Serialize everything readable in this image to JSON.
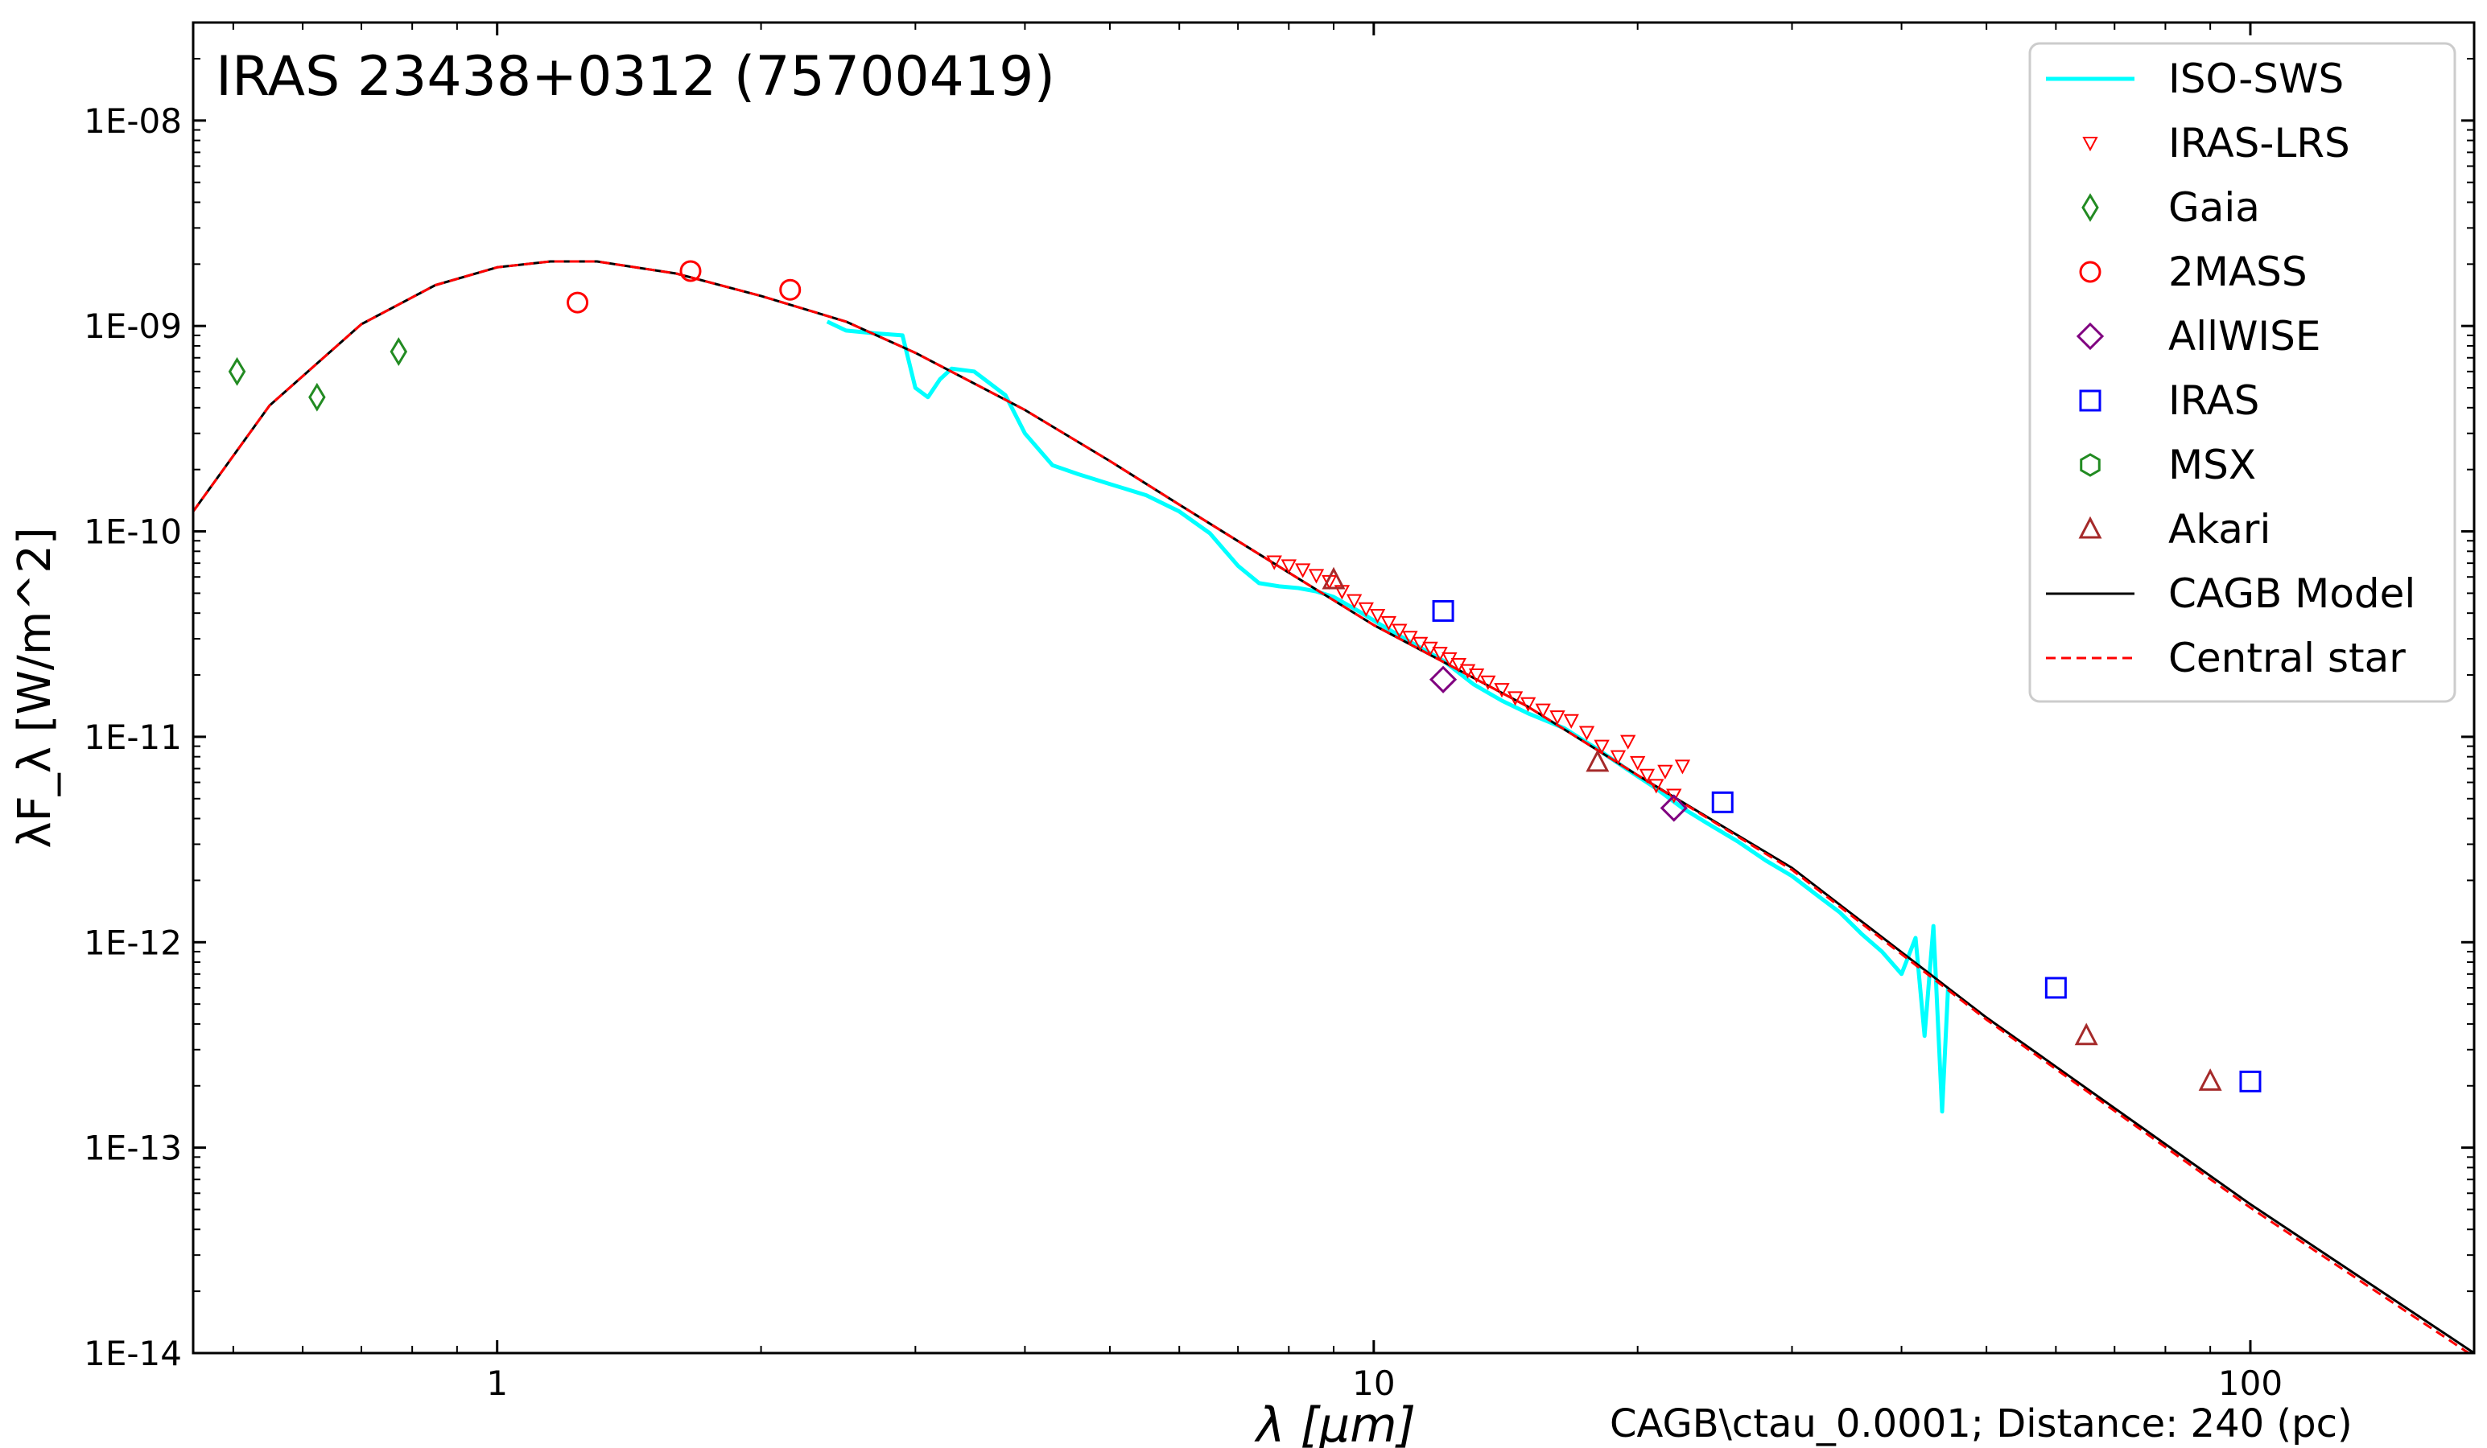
{
  "chart_data": {
    "type": "line",
    "title": "IRAS 23438+0312 (75700419)",
    "xlabel": "λ [μm]",
    "ylabel": "λF_λ [W/m^2]",
    "footnote": "CAGB\\ctau_0.0001; Distance: 240 (pc)",
    "xscale": "log",
    "yscale": "log",
    "xlim": [
      0.45,
      180
    ],
    "ylim": [
      1e-14,
      3e-08
    ],
    "x_ticks": [
      {
        "value": 1,
        "label": "1"
      },
      {
        "value": 10,
        "label": "10"
      },
      {
        "value": 100,
        "label": "100"
      }
    ],
    "y_ticks": [
      {
        "value": 1e-08,
        "label": "1E-08"
      },
      {
        "value": 1e-09,
        "label": "1E-09"
      },
      {
        "value": 1e-10,
        "label": "1E-10"
      },
      {
        "value": 1e-11,
        "label": "1E-11"
      },
      {
        "value": 1e-12,
        "label": "1E-12"
      },
      {
        "value": 1e-13,
        "label": "1E-13"
      },
      {
        "value": 1e-14,
        "label": "1E-14"
      }
    ],
    "legend_position": "top-right",
    "grid": false,
    "series": [
      {
        "name": "ISO-SWS",
        "kind": "line",
        "color": "#00ffff",
        "x": [
          2.38,
          2.5,
          2.7,
          2.9,
          3.0,
          3.1,
          3.2,
          3.3,
          3.5,
          3.8,
          4.0,
          4.3,
          4.6,
          5.0,
          5.5,
          6.0,
          6.5,
          7.0,
          7.4,
          7.8,
          8.2,
          8.6,
          9.0,
          9.6,
          10.2,
          11.0,
          12.0,
          13.0,
          14.0,
          15.0,
          16.5,
          18.0,
          19.5,
          21.0,
          22.5,
          24.0,
          26.0,
          28.0,
          30.0,
          32.0,
          34.0,
          36.0,
          38.0,
          40.0,
          41.5,
          42.5,
          43.5,
          44.5,
          45.2
        ],
        "y": [
          1.05e-09,
          9.5e-10,
          9.2e-10,
          9e-10,
          5e-10,
          4.5e-10,
          5.5e-10,
          6.2e-10,
          6e-10,
          4.6e-10,
          3e-10,
          2.1e-10,
          1.9e-10,
          1.7e-10,
          1.5e-10,
          1.25e-10,
          9.8e-11,
          6.8e-11,
          5.6e-11,
          5.4e-11,
          5.3e-11,
          5.1e-11,
          4.8e-11,
          4.1e-11,
          3.5e-11,
          2.9e-11,
          2.35e-11,
          1.8e-11,
          1.5e-11,
          1.3e-11,
          1.1e-11,
          8.7e-12,
          6.9e-12,
          5.6e-12,
          4.5e-12,
          3.8e-12,
          3.1e-12,
          2.5e-12,
          2.1e-12,
          1.7e-12,
          1.4e-12,
          1.1e-12,
          9e-13,
          7e-13,
          1.05e-12,
          3.5e-13,
          1.2e-12,
          1.5e-13,
          6e-13
        ]
      },
      {
        "name": "IRAS-LRS",
        "kind": "scatter",
        "marker": "triangle-down",
        "color": "#ff0000",
        "x": [
          7.7,
          8.0,
          8.3,
          8.6,
          8.9,
          9.2,
          9.5,
          9.8,
          10.1,
          10.4,
          10.7,
          11.0,
          11.3,
          11.6,
          11.9,
          12.2,
          12.5,
          12.8,
          13.1,
          13.5,
          14.0,
          14.5,
          15.0,
          15.6,
          16.2,
          16.8,
          17.5,
          18.2,
          19.0,
          19.5,
          20.0,
          20.5,
          21.0,
          21.5,
          22.0,
          22.5
        ],
        "y": [
          7.1e-11,
          6.8e-11,
          6.5e-11,
          6.1e-11,
          5.7e-11,
          5.1e-11,
          4.6e-11,
          4.2e-11,
          3.9e-11,
          3.6e-11,
          3.3e-11,
          3.05e-11,
          2.85e-11,
          2.7e-11,
          2.55e-11,
          2.4e-11,
          2.25e-11,
          2.1e-11,
          2e-11,
          1.85e-11,
          1.7e-11,
          1.55e-11,
          1.45e-11,
          1.35e-11,
          1.25e-11,
          1.2e-11,
          1.05e-11,
          9e-12,
          8e-12,
          9.5e-12,
          7.5e-12,
          6.5e-12,
          5.8e-12,
          6.8e-12,
          5.2e-12,
          7.2e-12
        ]
      },
      {
        "name": "Gaia",
        "kind": "scatter",
        "marker": "thin-diamond",
        "color": "#228b22",
        "x": [
          0.505,
          0.623,
          0.772
        ],
        "y": [
          6e-10,
          4.5e-10,
          7.5e-10
        ]
      },
      {
        "name": "2MASS",
        "kind": "scatter",
        "marker": "circle",
        "color": "#ff0000",
        "x": [
          1.235,
          1.662,
          2.159
        ],
        "y": [
          1.3e-09,
          1.85e-09,
          1.5e-09
        ]
      },
      {
        "name": "AllWISE",
        "kind": "scatter",
        "marker": "diamond",
        "color": "#800080",
        "x": [
          12.0,
          22.0
        ],
        "y": [
          1.9e-11,
          4.5e-12
        ]
      },
      {
        "name": "IRAS",
        "kind": "scatter",
        "marker": "square",
        "color": "#0000ff",
        "x": [
          12,
          25,
          60,
          100
        ],
        "y": [
          4.1e-11,
          4.8e-12,
          6e-13,
          2.1e-13
        ]
      },
      {
        "name": "MSX",
        "kind": "scatter",
        "marker": "hexagon",
        "color": "#228b22",
        "x": [],
        "y": []
      },
      {
        "name": "Akari",
        "kind": "scatter",
        "marker": "triangle-up",
        "color": "#a52a2a",
        "x": [
          9.0,
          18.0,
          65.0,
          90.0
        ],
        "y": [
          5.8e-11,
          7.5e-12,
          3.5e-13,
          2.1e-13
        ]
      },
      {
        "name": "CAGB Model",
        "kind": "line",
        "color": "#000000",
        "x": [
          0.45,
          0.55,
          0.7,
          0.85,
          1.0,
          1.15,
          1.3,
          1.6,
          2.0,
          2.5,
          3.0,
          4.0,
          5.0,
          6.0,
          8.0,
          10.0,
          15.0,
          20.0,
          30.0,
          50.0,
          100.0,
          180.0
        ],
        "y": [
          1.25e-10,
          4.1e-10,
          1.02e-09,
          1.58e-09,
          1.93e-09,
          2.06e-09,
          2.06e-09,
          1.8e-09,
          1.4e-09,
          1.05e-09,
          7.4e-10,
          3.9e-10,
          2.2e-10,
          1.35e-10,
          6.3e-11,
          3.5e-11,
          1.4e-11,
          6.5e-12,
          2.3e-12,
          4.3e-13,
          5.3e-14,
          1e-14
        ]
      },
      {
        "name": "Central star",
        "kind": "line",
        "dash": true,
        "color": "#ff0000",
        "x": [
          0.45,
          0.55,
          0.7,
          0.85,
          1.0,
          1.15,
          1.3,
          1.6,
          2.0,
          2.5,
          3.0,
          4.0,
          5.0,
          6.0,
          8.0,
          10.0,
          15.0,
          20.0,
          30.0,
          50.0,
          100.0,
          180.0
        ],
        "y": [
          1.25e-10,
          4.1e-10,
          1.02e-09,
          1.58e-09,
          1.93e-09,
          2.06e-09,
          2.06e-09,
          1.8e-09,
          1.4e-09,
          1.05e-09,
          7.4e-10,
          3.9e-10,
          2.2e-10,
          1.35e-10,
          6.3e-11,
          3.5e-11,
          1.4e-11,
          6.5e-12,
          2.25e-12,
          4.2e-13,
          5.1e-14,
          9.6e-15
        ]
      }
    ]
  }
}
